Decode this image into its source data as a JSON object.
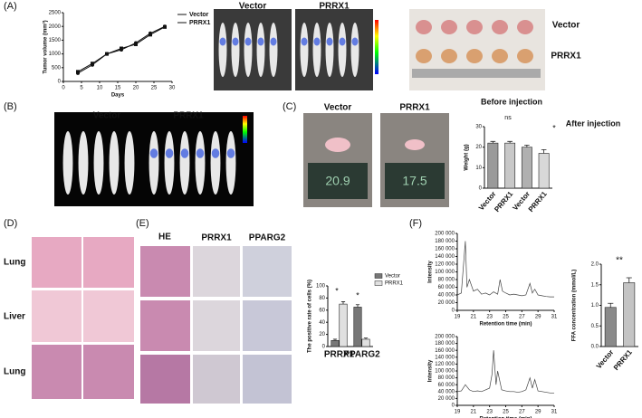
{
  "panel_labels": [
    "(A)",
    "(B)",
    "(C)",
    "(D)",
    "(E)",
    "(F)"
  ],
  "photos": {
    "a_mice": [
      "Vector",
      "PRRX1"
    ],
    "a_tumor": [
      "Vector",
      "PRRX1"
    ],
    "b_mice": [
      "Vector",
      "PRRX1"
    ],
    "c_mice": [
      "Vector",
      "PRRX1"
    ],
    "c_scale_readings": [
      "20.9",
      "17.5"
    ],
    "d_rows": [
      "Lung",
      "Liver",
      "Lung"
    ],
    "e_cols": [
      "HE",
      "PRRX1",
      "PPARG2"
    ]
  },
  "chart_data": [
    {
      "type": "line",
      "markers": true,
      "xlabel": "Days",
      "ylabel": "Tumor volume (mm³)",
      "x": [
        4,
        8,
        12,
        16,
        20,
        24,
        28
      ],
      "series": [
        {
          "name": "Vector",
          "color": "#111",
          "values": [
            300,
            600,
            1000,
            1150,
            1400,
            1750,
            2000
          ]
        },
        {
          "name": "PRRX1",
          "color": "#111",
          "values": [
            350,
            650,
            1000,
            1200,
            1350,
            1700,
            1980
          ]
        }
      ],
      "xlim": [
        0,
        30
      ],
      "xticks": [
        0,
        5,
        10,
        15,
        20,
        25,
        30
      ],
      "ylim": [
        0,
        2500
      ],
      "yticks": [
        0,
        500,
        1000,
        1500,
        2000,
        2500
      ]
    },
    {
      "type": "bar",
      "ylabel": "Weight (g)",
      "categories": [
        "Vector",
        "PRRX1",
        "Vector",
        "PRRX1"
      ],
      "values": [
        22,
        22,
        20,
        17
      ],
      "errors": [
        0.8,
        0.8,
        1.0,
        1.8
      ],
      "colors": [
        "#9a9a9a",
        "#c8c8c8",
        "#b0b0b0",
        "#d8d8d8"
      ],
      "ylim": [
        0,
        30
      ],
      "yticks": [
        0,
        10,
        20,
        30
      ],
      "annotations": [
        "Before injection",
        "After injection",
        "ns",
        "*"
      ]
    },
    {
      "type": "bar",
      "ylabel": "The positive rate of cells (%)",
      "categories": [
        "PRRX1",
        "PPARG2"
      ],
      "series": [
        {
          "name": "Vector",
          "color": "#777",
          "values": [
            10,
            65
          ],
          "errors": [
            2,
            4
          ]
        },
        {
          "name": "PRRX1",
          "color": "#e0e0e0",
          "values": [
            70,
            12
          ],
          "errors": [
            4,
            2
          ]
        }
      ],
      "ylim": [
        0,
        100
      ],
      "yticks": [
        0,
        20,
        40,
        60,
        80,
        100
      ],
      "annotations": [
        "*",
        "*"
      ]
    },
    {
      "type": "line",
      "xlabel": "Retention time (min)",
      "ylabel": "Intensity",
      "color": "#444",
      "x": [
        19,
        19.5,
        20,
        20.2,
        20.5,
        21,
        21.5,
        22,
        22.5,
        23,
        23.5,
        24,
        24.3,
        24.6,
        25,
        25.5,
        26,
        26.5,
        27,
        27.5,
        28,
        28.3,
        28.6,
        29,
        29.5,
        30,
        30.5,
        31
      ],
      "values": [
        40000,
        45000,
        180000,
        60000,
        80000,
        50000,
        55000,
        42000,
        45000,
        40000,
        48000,
        42000,
        80000,
        50000,
        45000,
        40000,
        42000,
        40000,
        38000,
        40000,
        70000,
        45000,
        55000,
        40000,
        38000,
        36000,
        35000,
        35000
      ],
      "xlim": [
        19,
        31
      ],
      "xticks": [
        19,
        21,
        23,
        25,
        27,
        29,
        31
      ],
      "ylim": [
        0,
        200000
      ],
      "yticks": [
        0,
        {
          "value": 20000,
          "label": "20 000"
        },
        {
          "value": 40000,
          "label": "40 000"
        },
        {
          "value": 60000,
          "label": "60 000"
        },
        {
          "value": 80000,
          "label": "80 000"
        },
        {
          "value": 100000,
          "label": "100 000"
        },
        {
          "value": 120000,
          "label": "120 000"
        },
        {
          "value": 140000,
          "label": "140 000"
        },
        {
          "value": 160000,
          "label": "160 000"
        },
        {
          "value": 180000,
          "label": "180 000"
        },
        {
          "value": 200000,
          "label": "200 000"
        }
      ]
    },
    {
      "type": "line",
      "xlabel": "Retention time (min)",
      "ylabel": "Intensity",
      "color": "#444",
      "x": [
        19,
        19.5,
        20,
        20.5,
        21,
        21.5,
        22,
        22.5,
        23,
        23.3,
        23.5,
        23.8,
        24,
        24.5,
        25,
        25.5,
        26,
        26.5,
        27,
        27.5,
        28,
        28.3,
        28.6,
        29,
        29.5,
        30,
        30.5,
        31
      ],
      "values": [
        40000,
        42000,
        60000,
        45000,
        40000,
        42000,
        40000,
        45000,
        50000,
        90000,
        160000,
        60000,
        100000,
        45000,
        42000,
        40000,
        40000,
        38000,
        40000,
        45000,
        80000,
        50000,
        75000,
        42000,
        40000,
        38000,
        36000,
        36000
      ],
      "xlim": [
        19,
        31
      ],
      "xticks": [
        19,
        21,
        23,
        25,
        27,
        29,
        31
      ],
      "ylim": [
        0,
        200000
      ],
      "yticks": [
        0,
        {
          "value": 20000,
          "label": "20 000"
        },
        {
          "value": 40000,
          "label": "40 000"
        },
        {
          "value": 60000,
          "label": "60 000"
        },
        {
          "value": 80000,
          "label": "80 000"
        },
        {
          "value": 100000,
          "label": "100 000"
        },
        {
          "value": 120000,
          "label": "120 000"
        },
        {
          "value": 140000,
          "label": "140 000"
        },
        {
          "value": 160000,
          "label": "160 000"
        },
        {
          "value": 180000,
          "label": "180 000"
        },
        {
          "value": 200000,
          "label": "200 000"
        }
      ]
    },
    {
      "type": "bar",
      "ylabel": "FFA concentration (mmol/L)",
      "categories": [
        "Vector",
        "PRRX1"
      ],
      "values": [
        0.95,
        1.55
      ],
      "errors": [
        0.1,
        0.12
      ],
      "colors": [
        "#8a8a8a",
        "#c4c4c4"
      ],
      "ylim": [
        0,
        2
      ],
      "yticks": [
        {
          "value": 0,
          "label": "0.0"
        },
        {
          "value": 0.5,
          "label": "0.5"
        },
        {
          "value": 1,
          "label": "1.0"
        },
        {
          "value": 1.5,
          "label": "1.5"
        },
        {
          "value": 2,
          "label": "2.0"
        }
      ],
      "annotations": [
        "**"
      ]
    }
  ]
}
